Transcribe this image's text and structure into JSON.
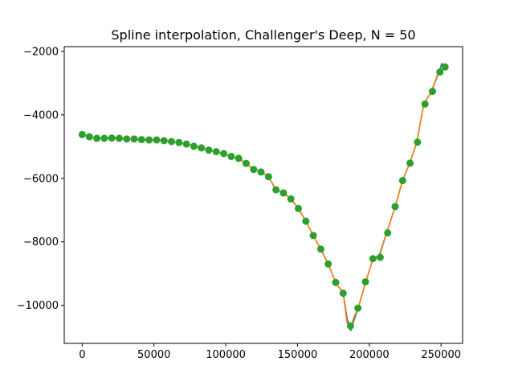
{
  "chart_data": {
    "type": "line",
    "title": "Spline interpolation, Challenger's Deep, N = 50",
    "xlabel": "",
    "ylabel": "",
    "xlim": [
      -12500,
      265000
    ],
    "ylim": [
      -11200,
      -1850
    ],
    "grid": false,
    "x_ticks": [
      0,
      50000,
      100000,
      150000,
      200000,
      250000
    ],
    "x_tick_labels": [
      "0",
      "50000",
      "100000",
      "150000",
      "200000",
      "250000"
    ],
    "y_ticks": [
      -10000,
      -8000,
      -6000,
      -4000,
      -2000
    ],
    "y_tick_labels": [
      "−10000",
      "−8000",
      "−6000",
      "−4000",
      "−2000"
    ],
    "colors": {
      "series_0": "#1f77b4",
      "series_1": "#ff7f0e",
      "series_2": "#2ca02c"
    },
    "series": [
      {
        "style": "line",
        "x": [
          0,
          5000,
          10200,
          15400,
          20600,
          25800,
          31000,
          36200,
          41400,
          46600,
          51800,
          57000,
          62200,
          67400,
          72600,
          77800,
          83000,
          88200,
          93400,
          98600,
          103800,
          109000,
          114200,
          119400,
          124600,
          129800,
          135000,
          140200,
          145400,
          150600,
          155800,
          161000,
          166200,
          171400,
          176600,
          181800,
          184500,
          187000,
          189500,
          192200,
          197400,
          202600,
          207000,
          212000,
          218000,
          223000,
          228000,
          233000,
          238000,
          243000,
          248000,
          250500,
          252800
        ],
        "y": [
          -4620,
          -4690,
          -4740,
          -4740,
          -4730,
          -4740,
          -4760,
          -4760,
          -4780,
          -4790,
          -4790,
          -4810,
          -4840,
          -4870,
          -4920,
          -4990,
          -5040,
          -5110,
          -5160,
          -5220,
          -5310,
          -5370,
          -5530,
          -5720,
          -5800,
          -5950,
          -6360,
          -6460,
          -6650,
          -6950,
          -7350,
          -7800,
          -8230,
          -8700,
          -9280,
          -9620,
          -10400,
          -10800,
          -10450,
          -10100,
          -9280,
          -8540,
          -8420,
          -7720,
          -6900,
          -6090,
          -5540,
          -4880,
          -3650,
          -3290,
          -2720,
          -2380,
          -2490
        ]
      },
      {
        "style": "line",
        "x": [
          0,
          5000,
          10200,
          15400,
          20600,
          25800,
          31000,
          36200,
          41400,
          46600,
          51800,
          57000,
          62200,
          67400,
          72600,
          77800,
          83000,
          88200,
          93400,
          98600,
          103800,
          109000,
          114200,
          119400,
          124600,
          129800,
          135000,
          140200,
          145400,
          150600,
          155800,
          161000,
          166200,
          171400,
          176600,
          181800,
          184500,
          187000,
          189500,
          192200,
          197400,
          202600,
          207000,
          212000,
          218000,
          223000,
          228000,
          233000,
          238000,
          243000,
          248000,
          250500,
          252800
        ],
        "y": [
          -4620,
          -4690,
          -4740,
          -4740,
          -4730,
          -4740,
          -4760,
          -4760,
          -4780,
          -4790,
          -4790,
          -4810,
          -4840,
          -4870,
          -4920,
          -4990,
          -5040,
          -5110,
          -5160,
          -5220,
          -5310,
          -5370,
          -5530,
          -5720,
          -5800,
          -5950,
          -6360,
          -6460,
          -6650,
          -6950,
          -7350,
          -7800,
          -8230,
          -8700,
          -9280,
          -9620,
          -10550,
          -10700,
          -10350,
          -10100,
          -9280,
          -8540,
          -8480,
          -7720,
          -6900,
          -6090,
          -5540,
          -4880,
          -3650,
          -3290,
          -2680,
          -2560,
          -2490
        ]
      },
      {
        "style": "markers",
        "x": [
          0,
          5000,
          10200,
          15400,
          20600,
          25800,
          31000,
          36200,
          41400,
          46600,
          51800,
          57000,
          62200,
          67400,
          72600,
          77800,
          83000,
          88200,
          93400,
          98600,
          103800,
          109000,
          114200,
          119400,
          124600,
          129800,
          135000,
          140200,
          145400,
          150600,
          155800,
          161000,
          166200,
          171400,
          176600,
          181800,
          186900,
          192100,
          197300,
          202500,
          207600,
          212800,
          218000,
          223200,
          228400,
          233600,
          238800,
          244000,
          249200,
          252800
        ],
        "y": [
          -4620,
          -4690,
          -4740,
          -4740,
          -4730,
          -4740,
          -4760,
          -4760,
          -4780,
          -4790,
          -4790,
          -4810,
          -4840,
          -4870,
          -4920,
          -4990,
          -5040,
          -5110,
          -5160,
          -5220,
          -5310,
          -5370,
          -5530,
          -5720,
          -5800,
          -5950,
          -6360,
          -6460,
          -6650,
          -6950,
          -7350,
          -7800,
          -8230,
          -8700,
          -9280,
          -9620,
          -10650,
          -10090,
          -9260,
          -8530,
          -8490,
          -7720,
          -6890,
          -6070,
          -5520,
          -4860,
          -3660,
          -3260,
          -2650,
          -2490
        ]
      }
    ]
  }
}
